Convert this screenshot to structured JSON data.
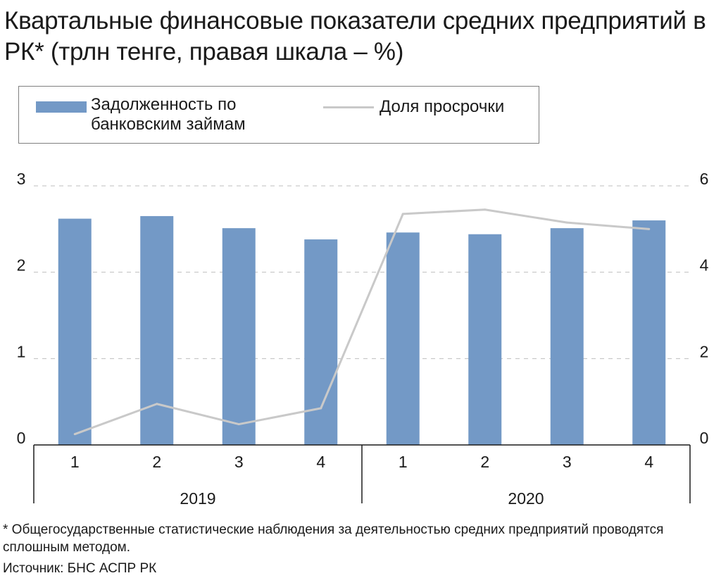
{
  "title": "Квартальные финансовые показатели средних предприятий в РК* (трлн тенге, правая шкала – %)",
  "legend": {
    "bar_label": "Задолженность по банковским займам",
    "line_label": "Доля просрочки"
  },
  "footnote": "* Общегосударственные статистические наблюдения за деятельностью средних предприятий проводятся сплошным методом.",
  "source": "Источник: БНС АСПР РК",
  "colors": {
    "bar": "#7399c6",
    "line": "#c9c9c9",
    "grid": "#bfbfbf",
    "axis": "#1a1a1a"
  },
  "chart_data": {
    "type": "bar",
    "categories": [
      "1",
      "2",
      "3",
      "4",
      "1",
      "2",
      "3",
      "4"
    ],
    "groups": [
      {
        "label": "2019",
        "count": 4
      },
      {
        "label": "2020",
        "count": 4
      }
    ],
    "series": [
      {
        "name": "Задолженность по банковским займам",
        "type": "bar",
        "axis": "left",
        "values": [
          2.62,
          2.65,
          2.51,
          2.38,
          2.46,
          2.44,
          2.51,
          2.6
        ]
      },
      {
        "name": "Доля просрочки",
        "type": "line",
        "axis": "right",
        "values": [
          0.25,
          0.95,
          0.48,
          0.85,
          5.35,
          5.45,
          5.15,
          5.0
        ]
      }
    ],
    "left_axis": {
      "min": 0,
      "max": 3,
      "ticks": [
        "0",
        "1",
        "2",
        "3"
      ]
    },
    "right_axis": {
      "min": 0,
      "max": 6,
      "ticks": [
        "0",
        "2",
        "4",
        "6"
      ]
    },
    "grid": "dashed horizontal",
    "legend_position": "top"
  }
}
